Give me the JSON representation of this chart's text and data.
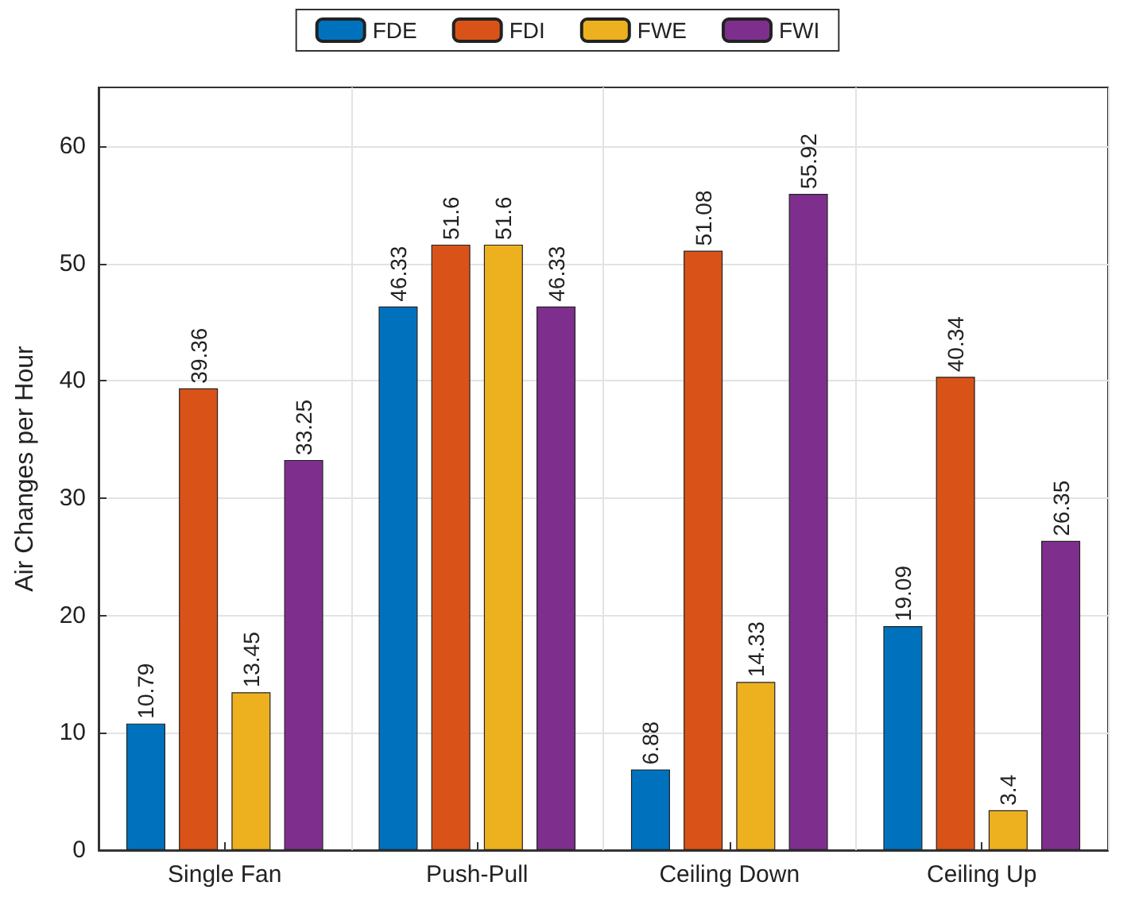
{
  "chart_data": {
    "type": "bar",
    "ylabel": "Air Changes per Hour",
    "categories": [
      "Single Fan",
      "Push-Pull",
      "Ceiling Down",
      "Ceiling Up"
    ],
    "series": [
      {
        "name": "FDE",
        "color": "#0072bd",
        "values": [
          10.79,
          46.33,
          6.88,
          19.09
        ]
      },
      {
        "name": "FDI",
        "color": "#d95319",
        "values": [
          39.36,
          51.6,
          51.08,
          40.34
        ]
      },
      {
        "name": "FWE",
        "color": "#edb120",
        "values": [
          13.45,
          51.6,
          14.33,
          3.4
        ]
      },
      {
        "name": "FWI",
        "color": "#7e2f8e",
        "values": [
          33.25,
          46.33,
          55.92,
          26.35
        ]
      }
    ],
    "ylim": [
      0,
      65
    ],
    "yticks": [
      0,
      10,
      20,
      30,
      40,
      50,
      60
    ],
    "grid": true,
    "legend": "top",
    "data_labels": true
  }
}
